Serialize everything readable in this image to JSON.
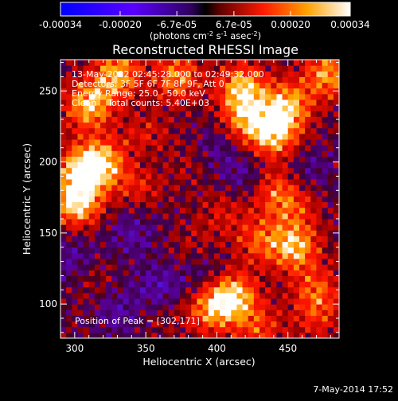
{
  "colorbar": {
    "ticks": [
      "-0.00034",
      "-0.00020",
      "-6.7e-05",
      "6.7e-05",
      "0.00020",
      "0.00034"
    ],
    "range": [
      -0.00034,
      0.00034
    ],
    "unit_parts": [
      "(photons cm",
      "-2",
      " s",
      "-1",
      " asec",
      "-2",
      ")"
    ]
  },
  "title": "Reconstructed RHESSI Image",
  "info": [
    "13-May-2012 02:45:28.000 to 02:49:32.000",
    "Detectors: 3F 5F 6F 7F 8F 9F, Att 0",
    "Energy Range: 25.0 - 50.0 keV",
    "Clean    Total counts: 5.40E+03"
  ],
  "peak_label": "Position of Peak = [302,171]",
  "footer_date": "7-May-2014 17:52",
  "chart_data": {
    "type": "heatmap",
    "title": "Reconstructed RHESSI Image",
    "xlabel": "Heliocentric X (arcsec)",
    "ylabel": "Heliocentric Y (arcsec)",
    "xlim": [
      290,
      486
    ],
    "ylim": [
      76,
      272
    ],
    "xticks": [
      300,
      350,
      400,
      450
    ],
    "yticks": [
      100,
      150,
      200,
      250
    ],
    "peak": [
      302,
      171
    ],
    "hot_spots": [
      {
        "x": 302,
        "y": 172,
        "value": 0.00034
      },
      {
        "x": 310,
        "y": 240,
        "value": 0.0003
      },
      {
        "x": 330,
        "y": 262,
        "value": 0.00028
      },
      {
        "x": 372,
        "y": 260,
        "value": 0.00024
      },
      {
        "x": 418,
        "y": 252,
        "value": 0.0003
      },
      {
        "x": 450,
        "y": 240,
        "value": 0.00028
      },
      {
        "x": 440,
        "y": 220,
        "value": 0.0003
      },
      {
        "x": 420,
        "y": 230,
        "value": 0.00022
      },
      {
        "x": 478,
        "y": 262,
        "value": 0.00026
      },
      {
        "x": 320,
        "y": 200,
        "value": 0.00026
      },
      {
        "x": 305,
        "y": 195,
        "value": 0.00028
      },
      {
        "x": 350,
        "y": 216,
        "value": 0.00016
      },
      {
        "x": 345,
        "y": 185,
        "value": 0.00014
      },
      {
        "x": 440,
        "y": 180,
        "value": 0.00018
      },
      {
        "x": 455,
        "y": 168,
        "value": 0.00014
      },
      {
        "x": 455,
        "y": 140,
        "value": 0.00028
      },
      {
        "x": 430,
        "y": 145,
        "value": 0.00018
      },
      {
        "x": 405,
        "y": 165,
        "value": 0.0001
      },
      {
        "x": 412,
        "y": 105,
        "value": 0.00032
      },
      {
        "x": 395,
        "y": 96,
        "value": 0.00022
      },
      {
        "x": 470,
        "y": 110,
        "value": 0.00018
      },
      {
        "x": 470,
        "y": 90,
        "value": 0.00012
      },
      {
        "x": 430,
        "y": 82,
        "value": 0.00016
      },
      {
        "x": 310,
        "y": 120,
        "value": 8e-05
      },
      {
        "x": 360,
        "y": 95,
        "value": 6e-05
      },
      {
        "x": 385,
        "y": 140,
        "value": 8e-05
      },
      {
        "x": 380,
        "y": 200,
        "value": 6e-05
      }
    ],
    "cold_spots": [
      {
        "x": 360,
        "y": 110,
        "value": -0.00014
      },
      {
        "x": 340,
        "y": 150,
        "value": -0.0001
      },
      {
        "x": 350,
        "y": 205,
        "value": -0.0001
      },
      {
        "x": 400,
        "y": 210,
        "value": -8e-05
      },
      {
        "x": 420,
        "y": 190,
        "value": -0.0001
      },
      {
        "x": 300,
        "y": 130,
        "value": -0.00012
      },
      {
        "x": 330,
        "y": 95,
        "value": -0.0001
      },
      {
        "x": 465,
        "y": 195,
        "value": -8e-05
      },
      {
        "x": 390,
        "y": 125,
        "value": -8e-05
      }
    ]
  }
}
